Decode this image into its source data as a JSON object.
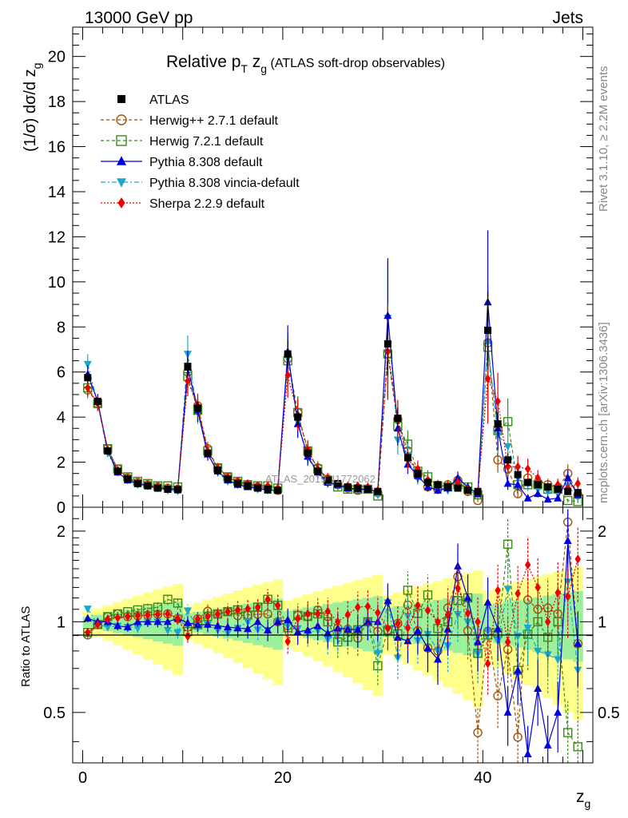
{
  "header": {
    "left": "13000 GeV pp",
    "right": "Jets"
  },
  "side_text": {
    "top": "Rivet 3.1.10, ≥ 2.2M events",
    "bottom": "mcplots.cern.ch [arXiv:1306.3436]"
  },
  "watermark": "ATLAS_2019_I1772062",
  "chart_data": {
    "type": "scatter",
    "title": "Relative pT zg (ATLAS soft-drop observables)",
    "title_parts": {
      "main": "Relative p",
      "sub1": "T",
      "mid": " z",
      "sub2": "g",
      "tail": " (ATLAS soft-drop observables)"
    },
    "ylabel": "(1/σ) dσ/d z g",
    "ylabel_parts": {
      "main": "(1/σ) dσ/d z",
      "sub": "g"
    },
    "xlabel": "z g",
    "xlabel_parts": {
      "main": "z",
      "sub": "g"
    },
    "ratio_ylabel": "Ratio to ATLAS",
    "xlim": [
      -1,
      51
    ],
    "ylim": [
      0,
      21.3
    ],
    "ratio_ylim": [
      0.34,
      2.4
    ],
    "ratio_log": true,
    "x_ticks": [
      0,
      20,
      40
    ],
    "y_ticks": [
      0,
      2,
      4,
      6,
      8,
      10,
      12,
      14,
      16,
      18,
      20
    ],
    "ratio_ticks": [
      0.5,
      1,
      2
    ],
    "legend_position": "top-left",
    "x": [
      0.5,
      1.5,
      2.5,
      3.5,
      4.5,
      5.5,
      6.5,
      7.5,
      8.5,
      9.5,
      10.5,
      11.5,
      12.5,
      13.5,
      14.5,
      15.5,
      16.5,
      17.5,
      18.5,
      19.5,
      20.5,
      21.5,
      22.5,
      23.5,
      24.5,
      25.5,
      26.5,
      27.5,
      28.5,
      29.5,
      30.5,
      31.5,
      32.5,
      33.5,
      34.5,
      35.5,
      36.5,
      37.5,
      38.5,
      39.5,
      40.5,
      41.5,
      42.5,
      43.5,
      44.5,
      45.5,
      46.5,
      47.5,
      48.5,
      49.5
    ],
    "series": [
      {
        "name": "ATLAS",
        "color": "#000000",
        "marker": "square-filled",
        "dash": "none",
        "values": [
          5.75,
          4.7,
          2.5,
          1.6,
          1.25,
          1.05,
          0.95,
          0.85,
          0.8,
          0.78,
          6.25,
          4.4,
          2.4,
          1.65,
          1.25,
          1.05,
          0.95,
          0.85,
          0.8,
          0.75,
          6.8,
          4.0,
          2.4,
          1.6,
          1.2,
          1.05,
          0.9,
          0.85,
          0.8,
          0.7,
          7.25,
          3.95,
          2.2,
          1.5,
          1.1,
          1.0,
          0.9,
          0.85,
          0.75,
          0.7,
          7.85,
          3.7,
          2.1,
          1.45,
          1.1,
          1.0,
          0.9,
          0.8,
          0.7,
          0.65
        ]
      },
      {
        "name": "Herwig++ 2.7.1 default",
        "color": "#a0520a",
        "marker": "circle-open",
        "dash": "4,3",
        "values": [
          5.2,
          4.6,
          2.6,
          1.7,
          1.3,
          1.1,
          1.0,
          0.9,
          0.85,
          0.8,
          6.0,
          4.5,
          2.6,
          1.75,
          1.35,
          1.1,
          1.0,
          0.9,
          0.85,
          0.75,
          6.6,
          4.2,
          2.5,
          1.75,
          1.25,
          1.0,
          0.85,
          0.75,
          0.8,
          0.65,
          6.8,
          3.9,
          2.5,
          1.4,
          0.9,
          0.8,
          1.0,
          1.2,
          0.7,
          0.3,
          7.3,
          2.1,
          1.7,
          0.6,
          1.3,
          1.1,
          1.0,
          0.85,
          1.5,
          0.55
        ]
      },
      {
        "name": "Herwig 7.2.1 default",
        "color": "#3a8a1a",
        "marker": "square-open",
        "dash": "4,3",
        "values": [
          5.3,
          4.6,
          2.6,
          1.7,
          1.35,
          1.15,
          1.05,
          0.95,
          0.95,
          0.9,
          5.8,
          4.3,
          2.5,
          1.75,
          1.35,
          1.15,
          1.0,
          0.95,
          0.95,
          0.85,
          6.5,
          4.2,
          2.5,
          1.7,
          1.2,
          0.9,
          0.8,
          0.8,
          0.8,
          0.5,
          6.8,
          3.6,
          2.8,
          1.6,
          1.35,
          0.95,
          0.9,
          1.0,
          0.9,
          0.55,
          7.1,
          3.4,
          3.8,
          1.0,
          1.0,
          1.0,
          0.8,
          0.8,
          0.3,
          0.25
        ]
      },
      {
        "name": "Pythia 8.308 default",
        "color": "#0000dd",
        "marker": "triangle-up",
        "dash": "none",
        "values": [
          5.9,
          4.7,
          2.5,
          1.55,
          1.2,
          1.05,
          0.95,
          0.85,
          0.8,
          0.8,
          6.2,
          4.3,
          2.35,
          1.6,
          1.2,
          1.0,
          0.9,
          0.85,
          0.75,
          0.75,
          6.9,
          3.7,
          2.25,
          1.55,
          1.1,
          1.0,
          0.85,
          0.8,
          0.8,
          0.7,
          8.5,
          3.5,
          1.9,
          1.4,
          0.9,
          0.75,
          0.85,
          1.3,
          0.9,
          0.6,
          9.1,
          3.5,
          1.05,
          1.0,
          0.4,
          0.6,
          0.35,
          0.4,
          1.3,
          0.55
        ]
      },
      {
        "name": "Pythia 8.308 vincia-default",
        "color": "#1aa7c9",
        "marker": "triangle-down",
        "dash": "6,3,2,3",
        "values": [
          6.35,
          4.6,
          2.4,
          1.55,
          1.2,
          1.0,
          0.95,
          0.85,
          0.75,
          0.72,
          6.8,
          4.2,
          2.35,
          1.55,
          1.15,
          1.0,
          0.95,
          0.8,
          0.75,
          0.75,
          6.6,
          3.8,
          2.2,
          1.5,
          1.05,
          0.95,
          0.85,
          0.8,
          0.8,
          0.55,
          8.4,
          3.0,
          2.3,
          1.3,
          1.0,
          0.8,
          0.75,
          0.9,
          0.75,
          0.55,
          7.3,
          3.2,
          2.7,
          1.3,
          1.05,
          0.8,
          0.7,
          0.6,
          0.95,
          0.45
        ]
      },
      {
        "name": "Sherpa 2.2.9 default",
        "color": "#ee0000",
        "marker": "diamond",
        "dash": "2,2",
        "values": [
          5.3,
          4.6,
          2.55,
          1.65,
          1.3,
          1.1,
          1.0,
          0.9,
          0.85,
          0.8,
          5.6,
          4.5,
          2.5,
          1.75,
          1.35,
          1.15,
          1.05,
          0.95,
          0.95,
          0.85,
          5.85,
          4.1,
          2.55,
          1.7,
          1.3,
          1.05,
          0.95,
          0.95,
          0.9,
          0.75,
          6.9,
          3.9,
          2.1,
          1.7,
          1.2,
          1.0,
          0.95,
          1.1,
          0.8,
          0.7,
          5.7,
          4.7,
          1.8,
          1.8,
          1.7,
          1.3,
          0.9,
          1.0,
          0.85,
          1.05
        ]
      }
    ]
  }
}
